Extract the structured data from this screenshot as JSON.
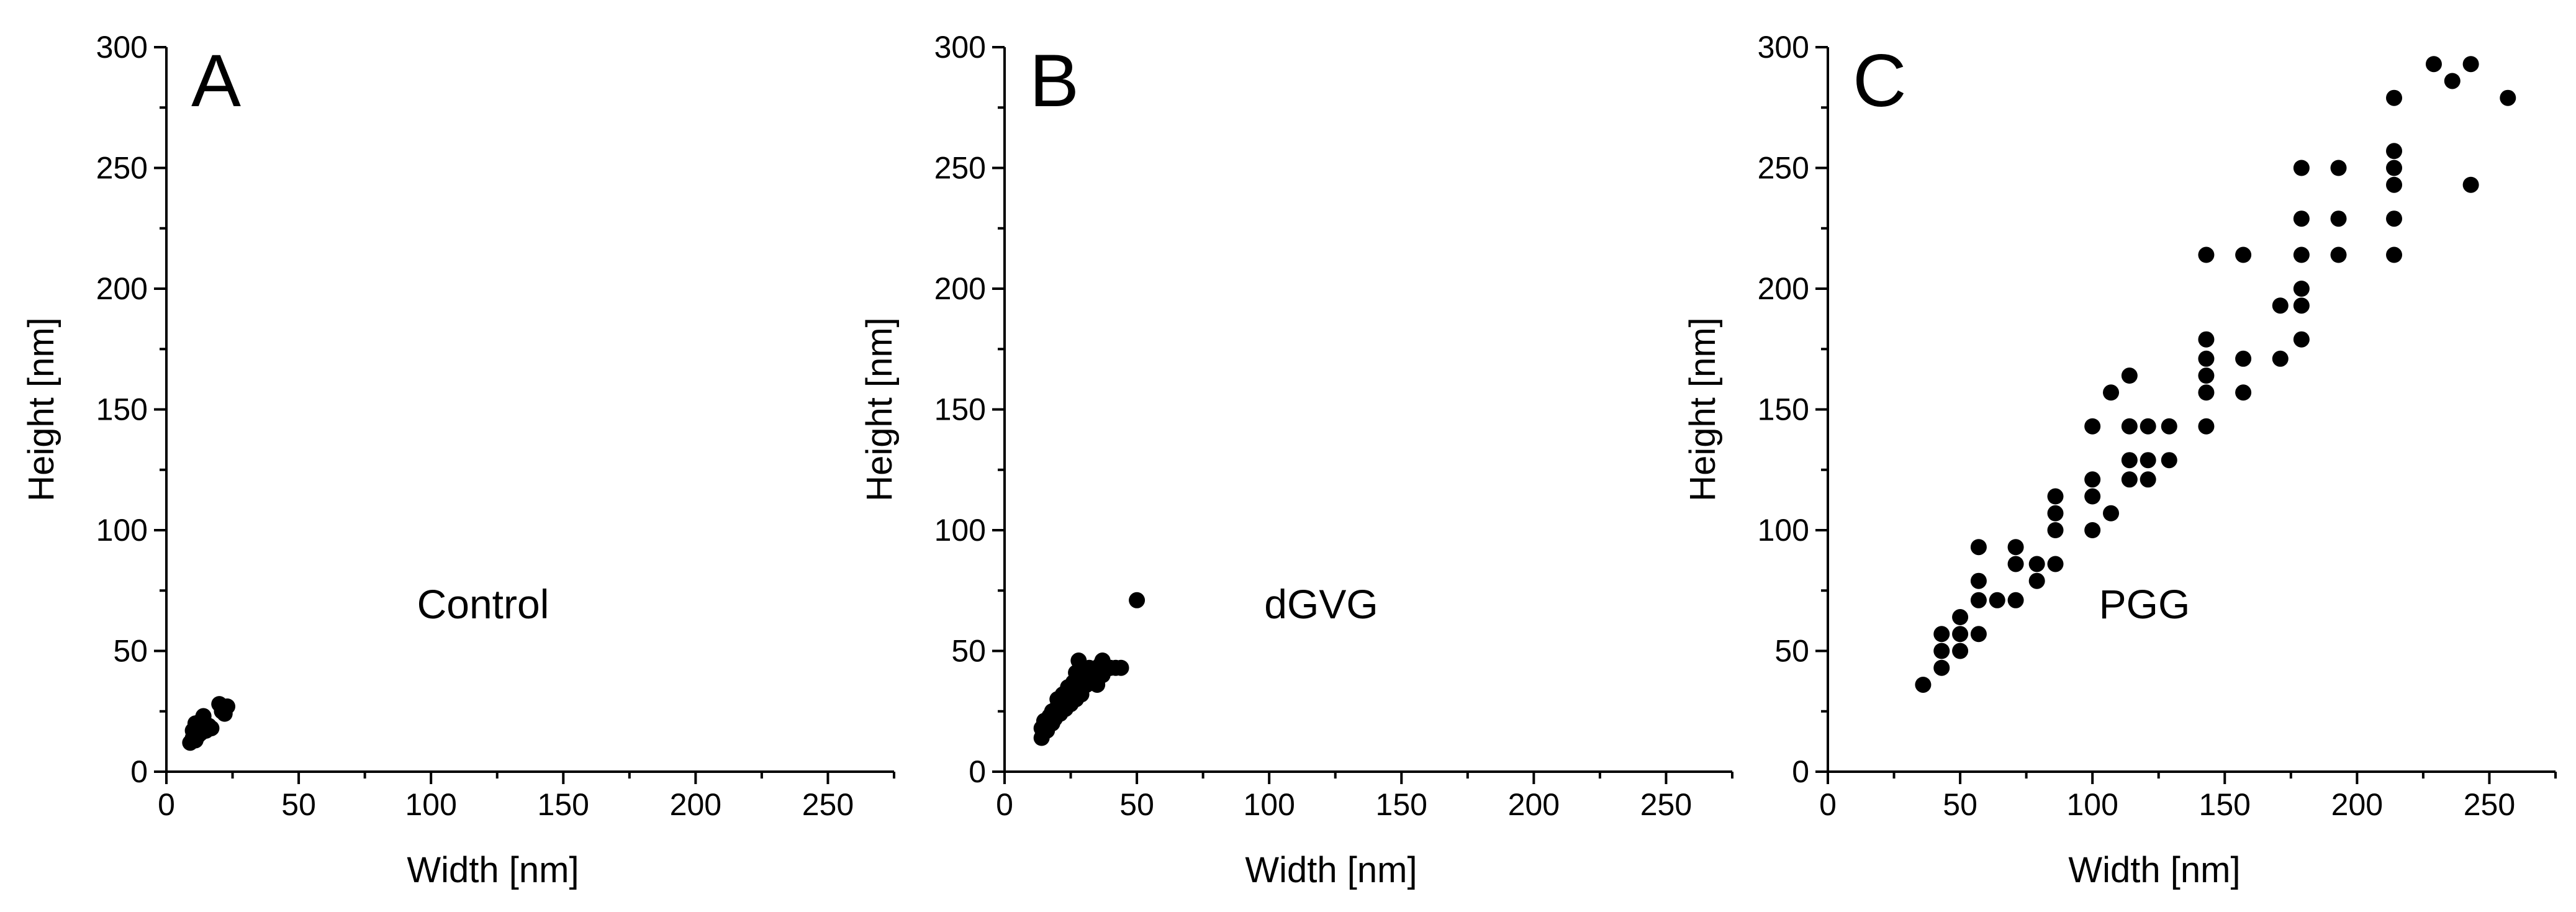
{
  "chart_data": [
    {
      "type": "scatter",
      "panel_label": "A",
      "annotation": "Control",
      "xlabel": "Width [nm]",
      "ylabel": "Height [nm]",
      "xlim": [
        0,
        275
      ],
      "ylim": [
        0,
        300
      ],
      "xticks": [
        0,
        50,
        100,
        150,
        200,
        250
      ],
      "yticks": [
        0,
        50,
        100,
        150,
        200,
        250,
        300
      ],
      "series": [
        {
          "name": "Control",
          "points": [
            [
              9,
              12
            ],
            [
              10,
              14
            ],
            [
              11,
              13
            ],
            [
              12,
              15
            ],
            [
              10,
              17
            ],
            [
              12,
              19
            ],
            [
              13,
              21
            ],
            [
              14,
              23
            ],
            [
              15,
              17
            ],
            [
              16,
              19
            ],
            [
              17,
              18
            ],
            [
              13,
              16
            ],
            [
              11,
              20
            ],
            [
              14,
              18
            ],
            [
              20,
              28
            ],
            [
              22,
              24
            ],
            [
              23,
              27
            ],
            [
              21,
              25
            ]
          ]
        }
      ]
    },
    {
      "type": "scatter",
      "panel_label": "B",
      "annotation": "dGVG",
      "xlabel": "Width [nm]",
      "ylabel": "Height [nm]",
      "xlim": [
        0,
        275
      ],
      "ylim": [
        0,
        300
      ],
      "xticks": [
        0,
        50,
        100,
        150,
        200,
        250
      ],
      "yticks": [
        0,
        50,
        100,
        150,
        200,
        250,
        300
      ],
      "series": [
        {
          "name": "dGVG",
          "points": [
            [
              14,
              14
            ],
            [
              14,
              18
            ],
            [
              15,
              21
            ],
            [
              16,
              17
            ],
            [
              17,
              23
            ],
            [
              18,
              20
            ],
            [
              18,
              25
            ],
            [
              19,
              22
            ],
            [
              20,
              27
            ],
            [
              20,
              30
            ],
            [
              21,
              24
            ],
            [
              22,
              29
            ],
            [
              22,
              32
            ],
            [
              23,
              26
            ],
            [
              24,
              31
            ],
            [
              24,
              35
            ],
            [
              25,
              28
            ],
            [
              26,
              33
            ],
            [
              26,
              37
            ],
            [
              27,
              30
            ],
            [
              27,
              41
            ],
            [
              28,
              35
            ],
            [
              28,
              46
            ],
            [
              29,
              38
            ],
            [
              29,
              32
            ],
            [
              30,
              40
            ],
            [
              31,
              36
            ],
            [
              32,
              43
            ],
            [
              33,
              38
            ],
            [
              34,
              41
            ],
            [
              35,
              36
            ],
            [
              36,
              44
            ],
            [
              37,
              40
            ],
            [
              37,
              46
            ],
            [
              38,
              42
            ],
            [
              40,
              43
            ],
            [
              42,
              43
            ],
            [
              44,
              43
            ],
            [
              50,
              71
            ]
          ]
        }
      ]
    },
    {
      "type": "scatter",
      "panel_label": "C",
      "annotation": "PGG",
      "xlabel": "Width [nm]",
      "ylabel": "Height [nm]",
      "xlim": [
        0,
        275
      ],
      "ylim": [
        0,
        300
      ],
      "xticks": [
        0,
        50,
        100,
        150,
        200,
        250
      ],
      "yticks": [
        0,
        50,
        100,
        150,
        200,
        250,
        300
      ],
      "series": [
        {
          "name": "PGG",
          "points": [
            [
              36,
              36
            ],
            [
              43,
              43
            ],
            [
              43,
              50
            ],
            [
              43,
              57
            ],
            [
              50,
              50
            ],
            [
              50,
              57
            ],
            [
              50,
              64
            ],
            [
              57,
              57
            ],
            [
              57,
              71
            ],
            [
              57,
              79
            ],
            [
              57,
              93
            ],
            [
              64,
              71
            ],
            [
              71,
              71
            ],
            [
              71,
              86
            ],
            [
              71,
              93
            ],
            [
              79,
              79
            ],
            [
              79,
              86
            ],
            [
              86,
              86
            ],
            [
              86,
              100
            ],
            [
              86,
              107
            ],
            [
              86,
              114
            ],
            [
              100,
              100
            ],
            [
              100,
              114
            ],
            [
              100,
              121
            ],
            [
              100,
              143
            ],
            [
              107,
              107
            ],
            [
              107,
              157
            ],
            [
              114,
              121
            ],
            [
              114,
              129
            ],
            [
              114,
              143
            ],
            [
              114,
              164
            ],
            [
              121,
              121
            ],
            [
              121,
              129
            ],
            [
              121,
              143
            ],
            [
              129,
              129
            ],
            [
              129,
              143
            ],
            [
              143,
              143
            ],
            [
              143,
              157
            ],
            [
              143,
              164
            ],
            [
              143,
              171
            ],
            [
              143,
              179
            ],
            [
              143,
              214
            ],
            [
              157,
              157
            ],
            [
              157,
              171
            ],
            [
              157,
              214
            ],
            [
              171,
              171
            ],
            [
              171,
              193
            ],
            [
              179,
              179
            ],
            [
              179,
              193
            ],
            [
              179,
              200
            ],
            [
              179,
              214
            ],
            [
              179,
              229
            ],
            [
              179,
              250
            ],
            [
              193,
              214
            ],
            [
              193,
              229
            ],
            [
              193,
              250
            ],
            [
              214,
              214
            ],
            [
              214,
              229
            ],
            [
              214,
              243
            ],
            [
              214,
              250
            ],
            [
              214,
              257
            ],
            [
              214,
              279
            ],
            [
              229,
              293
            ],
            [
              236,
              286
            ],
            [
              243,
              243
            ],
            [
              243,
              293
            ],
            [
              257,
              279
            ]
          ]
        }
      ]
    }
  ]
}
